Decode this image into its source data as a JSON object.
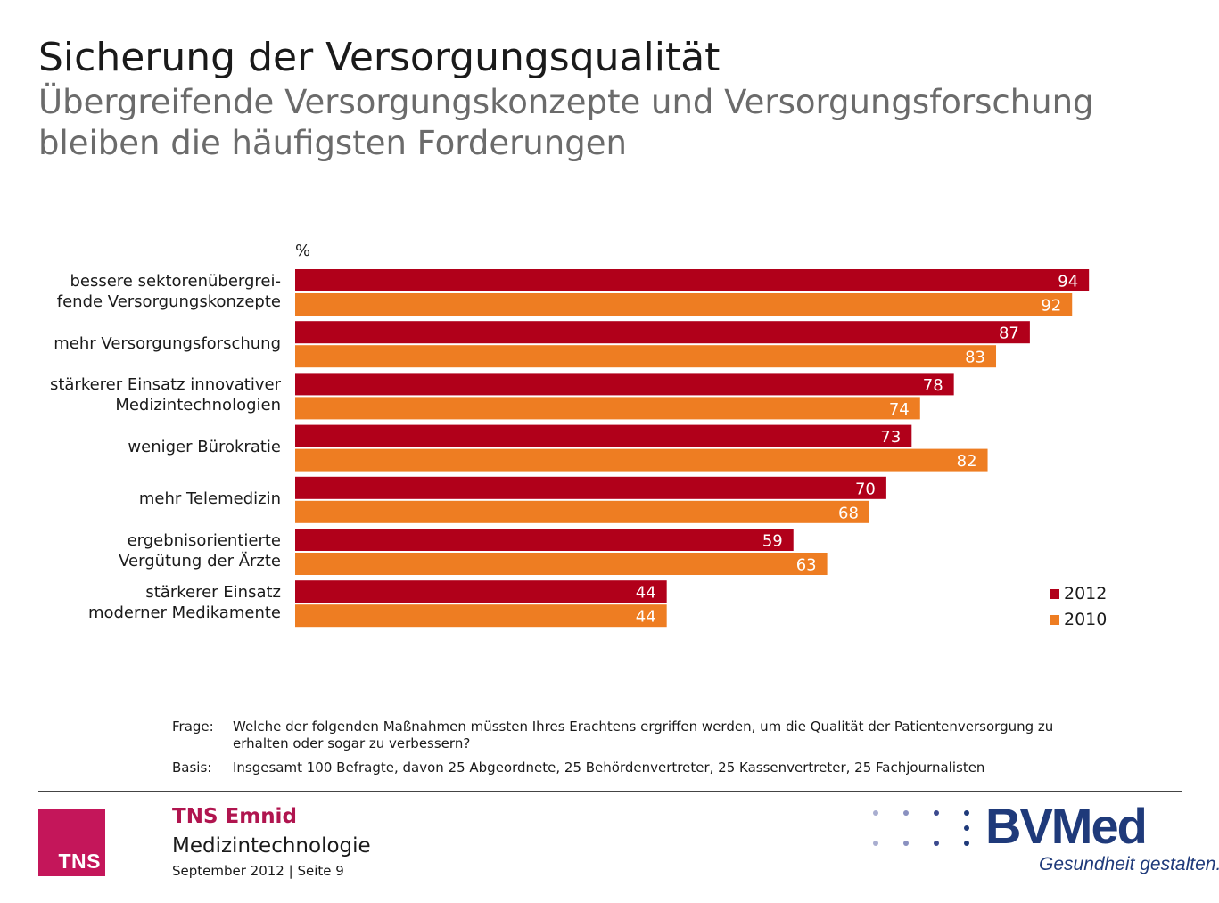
{
  "title": "Sicherung der Versorgungsqualität",
  "subtitle": "Übergreifende Versorgungskonzepte und Versorgungsforschung bleiben die häufigsten Forderungen",
  "chart_data": {
    "type": "bar",
    "orientation": "horizontal",
    "unit_label": "%",
    "categories": [
      [
        "bessere sektorenübergrei-",
        "fende Versorgungskonzepte"
      ],
      [
        "mehr Versorgungsforschung"
      ],
      [
        "stärkerer Einsatz innovativer",
        "Medizintechnologien"
      ],
      [
        "weniger Bürokratie"
      ],
      [
        "mehr Telemedizin"
      ],
      [
        "ergebnisorientierte",
        "Vergütung der Ärzte"
      ],
      [
        "stärkerer Einsatz",
        "moderner Medikamente"
      ]
    ],
    "series": [
      {
        "name": "2012",
        "color": "#b1001a",
        "values": [
          94,
          87,
          78,
          73,
          70,
          59,
          44
        ]
      },
      {
        "name": "2010",
        "color": "#ee7d22",
        "values": [
          92,
          83,
          74,
          82,
          68,
          63,
          44
        ]
      }
    ],
    "xlim": [
      0,
      100
    ],
    "grid": false,
    "data_labels": true,
    "legend_position": "bottom-right"
  },
  "notes": {
    "frage_label": "Frage:",
    "frage_text": "Welche der folgenden Maßnahmen müssten Ihres Erachtens ergriffen werden, um die Qualität der Patientenversorgung zu erhalten oder sogar zu verbessern?",
    "basis_label": "Basis:",
    "basis_text": "Insgesamt 100 Befragte, davon 25  Abgeordnete, 25  Behördenvertreter, 25  Kassenvertreter, 25  Fachjournalisten"
  },
  "footer": {
    "tns_logo_text": "TNS",
    "brand": "TNS Emnid",
    "department": "Medizintechnologie",
    "date_page": "September 2012  |  Seite 9",
    "bvmed_logo_text": "BVMed",
    "bvmed_tagline": "Gesundheit gestalten."
  }
}
